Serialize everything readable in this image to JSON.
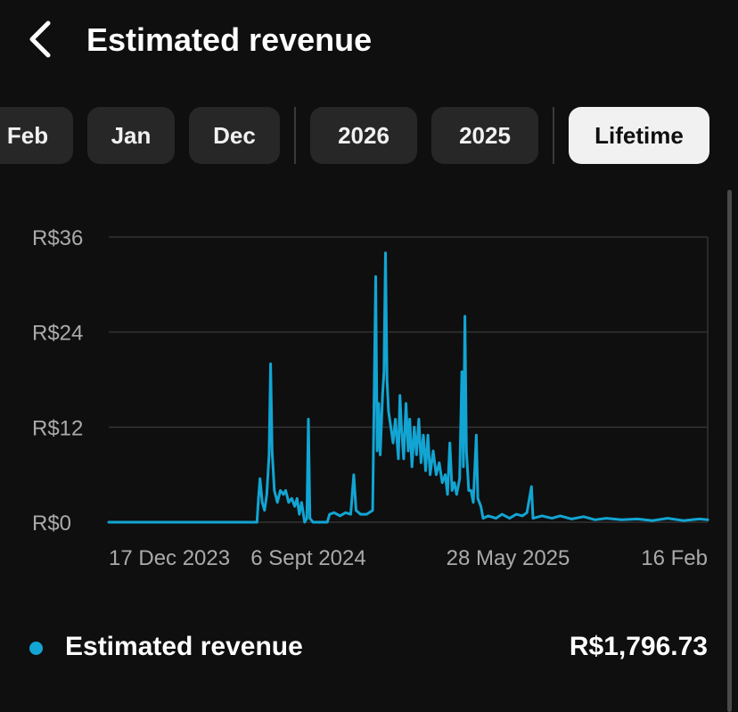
{
  "header": {
    "title": "Estimated revenue",
    "back_icon": "chevron-left-icon"
  },
  "period_chips": [
    {
      "label": "Feb",
      "selected": false
    },
    {
      "label": "Jan",
      "selected": false
    },
    {
      "label": "Dec",
      "selected": false
    },
    {
      "label": "2026",
      "selected": false
    },
    {
      "label": "2025",
      "selected": false
    },
    {
      "label": "Lifetime",
      "selected": true
    }
  ],
  "colors": {
    "series": "#12a5d3",
    "background": "#0f0f0f",
    "chip": "#272727",
    "chip_selected": "#f1f1f1",
    "axis_text": "#aaaaaa",
    "grid": "#333333"
  },
  "chart_data": {
    "type": "line",
    "y_tick_labels": [
      "R$36",
      "R$24",
      "R$12",
      "R$0"
    ],
    "y_ticks": [
      36,
      24,
      12,
      0
    ],
    "ylim": [
      0,
      36
    ],
    "x_tick_labels": [
      "17 Dec 2023",
      "6 Sept 2024",
      "28 May 2025",
      "16 Feb"
    ],
    "x_ticks": [
      "2023-12-17",
      "2024-09-06",
      "2025-05-28",
      "2026-02-16"
    ],
    "xlim": [
      "2023-12-17",
      "2026-02-16"
    ],
    "grid": true,
    "series": [
      {
        "name": "Estimated revenue",
        "points": [
          [
            "2023-12-17",
            0
          ],
          [
            "2024-06-01",
            0
          ],
          [
            "2024-06-30",
            0
          ],
          [
            "2024-07-02",
            3
          ],
          [
            "2024-07-04",
            5.5
          ],
          [
            "2024-07-07",
            2.5
          ],
          [
            "2024-07-10",
            1.5
          ],
          [
            "2024-07-13",
            3.5
          ],
          [
            "2024-07-16",
            8.5
          ],
          [
            "2024-07-18",
            20
          ],
          [
            "2024-07-20",
            9
          ],
          [
            "2024-07-23",
            4
          ],
          [
            "2024-07-27",
            2.5
          ],
          [
            "2024-07-31",
            4
          ],
          [
            "2024-08-04",
            3.5
          ],
          [
            "2024-08-07",
            4
          ],
          [
            "2024-08-11",
            2.5
          ],
          [
            "2024-08-15",
            3
          ],
          [
            "2024-08-19",
            2
          ],
          [
            "2024-08-22",
            3
          ],
          [
            "2024-08-25",
            1
          ],
          [
            "2024-08-28",
            2.5
          ],
          [
            "2024-09-01",
            0
          ],
          [
            "2024-09-04",
            0.5
          ],
          [
            "2024-09-06",
            13
          ],
          [
            "2024-09-08",
            0.5
          ],
          [
            "2024-09-12",
            0
          ],
          [
            "2024-10-01",
            0
          ],
          [
            "2024-10-04",
            1
          ],
          [
            "2024-10-10",
            1.2
          ],
          [
            "2024-10-18",
            0.8
          ],
          [
            "2024-10-25",
            1.2
          ],
          [
            "2024-11-01",
            1
          ],
          [
            "2024-11-05",
            6
          ],
          [
            "2024-11-08",
            1.5
          ],
          [
            "2024-11-14",
            1
          ],
          [
            "2024-11-22",
            1
          ],
          [
            "2024-11-30",
            1.5
          ],
          [
            "2024-12-04",
            31
          ],
          [
            "2024-12-06",
            9
          ],
          [
            "2024-12-08",
            15
          ],
          [
            "2024-12-10",
            8.5
          ],
          [
            "2024-12-13",
            16
          ],
          [
            "2024-12-15",
            19
          ],
          [
            "2024-12-17",
            34
          ],
          [
            "2024-12-19",
            18
          ],
          [
            "2024-12-21",
            14
          ],
          [
            "2024-12-24",
            12
          ],
          [
            "2024-12-27",
            10
          ],
          [
            "2024-12-30",
            13
          ],
          [
            "2025-01-03",
            8
          ],
          [
            "2025-01-05",
            16
          ],
          [
            "2025-01-07",
            12
          ],
          [
            "2025-01-10",
            8
          ],
          [
            "2025-01-13",
            15
          ],
          [
            "2025-01-16",
            9
          ],
          [
            "2025-01-18",
            13
          ],
          [
            "2025-01-21",
            7
          ],
          [
            "2025-01-24",
            12
          ],
          [
            "2025-01-27",
            8.5
          ],
          [
            "2025-01-30",
            13
          ],
          [
            "2025-02-02",
            7.5
          ],
          [
            "2025-02-05",
            11
          ],
          [
            "2025-02-08",
            6.5
          ],
          [
            "2025-02-11",
            11
          ],
          [
            "2025-02-14",
            6
          ],
          [
            "2025-02-18",
            9
          ],
          [
            "2025-02-22",
            6
          ],
          [
            "2025-02-26",
            7.5
          ],
          [
            "2025-03-02",
            5
          ],
          [
            "2025-03-06",
            6
          ],
          [
            "2025-03-09",
            3.5
          ],
          [
            "2025-03-12",
            10
          ],
          [
            "2025-03-15",
            4
          ],
          [
            "2025-03-18",
            5
          ],
          [
            "2025-03-21",
            3.5
          ],
          [
            "2025-03-25",
            5.5
          ],
          [
            "2025-03-28",
            19
          ],
          [
            "2025-03-30",
            7
          ],
          [
            "2025-04-01",
            26
          ],
          [
            "2025-04-03",
            9
          ],
          [
            "2025-04-06",
            4
          ],
          [
            "2025-04-09",
            4
          ],
          [
            "2025-04-12",
            2.5
          ],
          [
            "2025-04-16",
            11
          ],
          [
            "2025-04-18",
            3
          ],
          [
            "2025-04-22",
            2
          ],
          [
            "2025-04-25",
            0.5
          ],
          [
            "2025-05-02",
            0.8
          ],
          [
            "2025-05-12",
            0.5
          ],
          [
            "2025-05-20",
            1
          ],
          [
            "2025-05-30",
            0.5
          ],
          [
            "2025-06-08",
            1
          ],
          [
            "2025-06-16",
            0.8
          ],
          [
            "2025-06-22",
            1.2
          ],
          [
            "2025-06-28",
            4.5
          ],
          [
            "2025-06-30",
            0.5
          ],
          [
            "2025-07-12",
            0.8
          ],
          [
            "2025-07-25",
            0.5
          ],
          [
            "2025-08-05",
            0.8
          ],
          [
            "2025-08-20",
            0.4
          ],
          [
            "2025-09-05",
            0.7
          ],
          [
            "2025-09-20",
            0.3
          ],
          [
            "2025-10-05",
            0.5
          ],
          [
            "2025-10-25",
            0.3
          ],
          [
            "2025-11-15",
            0.4
          ],
          [
            "2025-12-05",
            0.2
          ],
          [
            "2025-12-25",
            0.5
          ],
          [
            "2026-01-15",
            0.2
          ],
          [
            "2026-02-05",
            0.4
          ],
          [
            "2026-02-16",
            0.3
          ]
        ]
      }
    ]
  },
  "summary": {
    "label": "Estimated revenue",
    "value": "R$1,796.73"
  }
}
